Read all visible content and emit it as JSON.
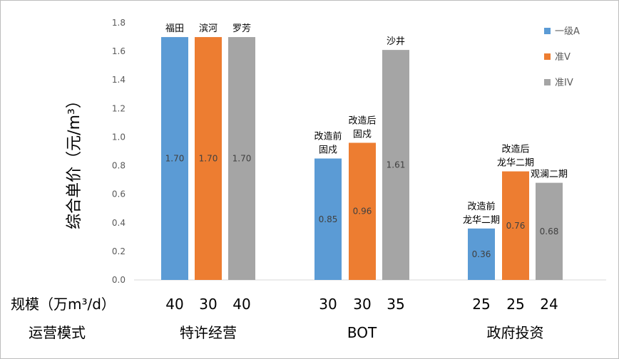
{
  "chart_data": {
    "type": "bar",
    "ylabel": "综合单价（元/m³）",
    "ylim": [
      0,
      1.8
    ],
    "yticks": [
      "0.0",
      "0.2",
      "0.4",
      "0.6",
      "0.8",
      "1.0",
      "1.2",
      "1.4",
      "1.6",
      "1.8"
    ],
    "series": [
      {
        "name": "一级A",
        "color": "#5b9bd5"
      },
      {
        "name": "准V",
        "color": "#ed7d31"
      },
      {
        "name": "准IV",
        "color": "#a5a5a5"
      }
    ],
    "groups": [
      {
        "mode": "特许经营",
        "bars": [
          {
            "label": [
              "福田"
            ],
            "series": 0,
            "value": 1.7,
            "value_label": "1.70",
            "scale": "40"
          },
          {
            "label": [
              "滨河"
            ],
            "series": 1,
            "value": 1.7,
            "value_label": "1.70",
            "scale": "30"
          },
          {
            "label": [
              "罗芳"
            ],
            "series": 2,
            "value": 1.7,
            "value_label": "1.70",
            "scale": "40"
          }
        ]
      },
      {
        "mode": "BOT",
        "bars": [
          {
            "label": [
              "改造前",
              "固戍"
            ],
            "series": 0,
            "value": 0.85,
            "value_label": "0.85",
            "scale": "30"
          },
          {
            "label": [
              "改造后",
              "固戍"
            ],
            "series": 1,
            "value": 0.96,
            "value_label": "0.96",
            "scale": "30"
          },
          {
            "label": [
              "沙井"
            ],
            "series": 2,
            "value": 1.61,
            "value_label": "1.61",
            "scale": "35"
          }
        ]
      },
      {
        "mode": "政府投资",
        "bars": [
          {
            "label": [
              "改造前",
              "龙华二期"
            ],
            "series": 0,
            "value": 0.36,
            "value_label": "0.36",
            "scale": "25"
          },
          {
            "label": [
              "改造后",
              "龙华二期"
            ],
            "series": 1,
            "value": 0.76,
            "value_label": "0.76",
            "scale": "25"
          },
          {
            "label": [
              "观澜二期"
            ],
            "series": 2,
            "value": 0.68,
            "value_label": "0.68",
            "scale": "24"
          }
        ]
      }
    ],
    "row_labels": {
      "scale": "规模（万m³/d）",
      "mode": "运营模式"
    }
  }
}
